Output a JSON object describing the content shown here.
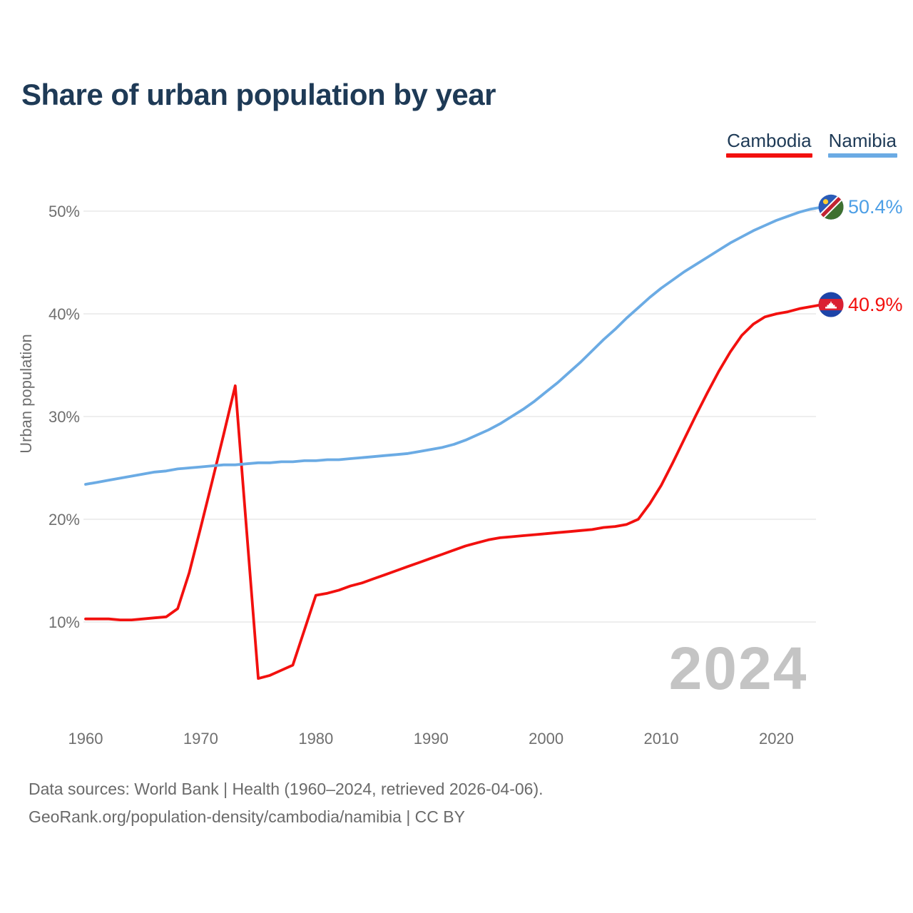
{
  "header": {
    "title": "Share of urban population by year"
  },
  "legend": [
    {
      "label": "Cambodia",
      "color": "#f2100e"
    },
    {
      "label": "Namibia",
      "color": "#6babe4"
    }
  ],
  "watermark": "2024",
  "footer": {
    "line1": "Data sources: World Bank | Health (1960–2024, retrieved 2026-04-06).",
    "line2": "GeoRank.org/population-density/cambodia/namibia | CC BY"
  },
  "colors": {
    "title_navy": "#1e3a56",
    "cambodia_red": "#f2100e",
    "namibia_blue": "#6babe4",
    "namibia_label_blue": "#4d9fe6",
    "tick_gray": "#6f6f6f",
    "gridline": "#e8e8e8",
    "watermark_gray": "#c4c4c4",
    "footer_gray": "#6a6a6a"
  },
  "chart_data": {
    "type": "line",
    "title": "Share of urban population by year",
    "xlabel": "",
    "ylabel": "Urban population",
    "grid": true,
    "legend_position": "top-right",
    "xlim": [
      1960,
      2024
    ],
    "ylim": [
      3,
      53
    ],
    "x_ticks": [
      1960,
      1970,
      1980,
      1990,
      2000,
      2010,
      2020
    ],
    "y_tick_values": [
      10,
      20,
      30,
      40,
      50
    ],
    "y_ticks": [
      "10%",
      "20%",
      "30%",
      "40%",
      "50%"
    ],
    "x": [
      1960,
      1961,
      1962,
      1963,
      1964,
      1965,
      1966,
      1967,
      1968,
      1969,
      1970,
      1971,
      1972,
      1973,
      1974,
      1975,
      1976,
      1977,
      1978,
      1979,
      1980,
      1981,
      1982,
      1983,
      1984,
      1985,
      1986,
      1987,
      1988,
      1989,
      1990,
      1991,
      1992,
      1993,
      1994,
      1995,
      1996,
      1997,
      1998,
      1999,
      2000,
      2001,
      2002,
      2003,
      2004,
      2005,
      2006,
      2007,
      2008,
      2009,
      2010,
      2011,
      2012,
      2013,
      2014,
      2015,
      2016,
      2017,
      2018,
      2019,
      2020,
      2021,
      2022,
      2023,
      2024
    ],
    "series": [
      {
        "name": "Cambodia",
        "color": "#f2100e",
        "label_color": "#f2100e",
        "end_label": "40.9%",
        "end_value": 40.9,
        "flag": "cambodia",
        "values": [
          10.3,
          10.3,
          10.3,
          10.2,
          10.2,
          10.3,
          10.4,
          10.5,
          11.3,
          14.8,
          19.2,
          23.7,
          28.3,
          33.0,
          18.7,
          4.5,
          4.8,
          5.3,
          5.8,
          9.2,
          12.6,
          12.8,
          13.1,
          13.5,
          13.8,
          14.2,
          14.6,
          15.0,
          15.4,
          15.8,
          16.2,
          16.6,
          17.0,
          17.4,
          17.7,
          18.0,
          18.2,
          18.3,
          18.4,
          18.5,
          18.6,
          18.7,
          18.8,
          18.9,
          19.0,
          19.2,
          19.3,
          19.5,
          20.0,
          21.5,
          23.3,
          25.5,
          27.8,
          30.1,
          32.3,
          34.4,
          36.3,
          37.9,
          39.0,
          39.7,
          40.0,
          40.2,
          40.5,
          40.7,
          40.9
        ]
      },
      {
        "name": "Namibia",
        "color": "#6babe4",
        "label_color": "#4d9fe6",
        "end_label": "50.4%",
        "end_value": 50.4,
        "flag": "namibia",
        "values": [
          23.4,
          23.6,
          23.8,
          24.0,
          24.2,
          24.4,
          24.6,
          24.7,
          24.9,
          25.0,
          25.1,
          25.2,
          25.3,
          25.3,
          25.4,
          25.5,
          25.5,
          25.6,
          25.6,
          25.7,
          25.7,
          25.8,
          25.8,
          25.9,
          26.0,
          26.1,
          26.2,
          26.3,
          26.4,
          26.6,
          26.8,
          27.0,
          27.3,
          27.7,
          28.2,
          28.7,
          29.3,
          30.0,
          30.7,
          31.5,
          32.4,
          33.3,
          34.3,
          35.3,
          36.4,
          37.5,
          38.5,
          39.6,
          40.6,
          41.6,
          42.5,
          43.3,
          44.1,
          44.8,
          45.5,
          46.2,
          46.9,
          47.5,
          48.1,
          48.6,
          49.1,
          49.5,
          49.9,
          50.2,
          50.4
        ]
      }
    ]
  }
}
